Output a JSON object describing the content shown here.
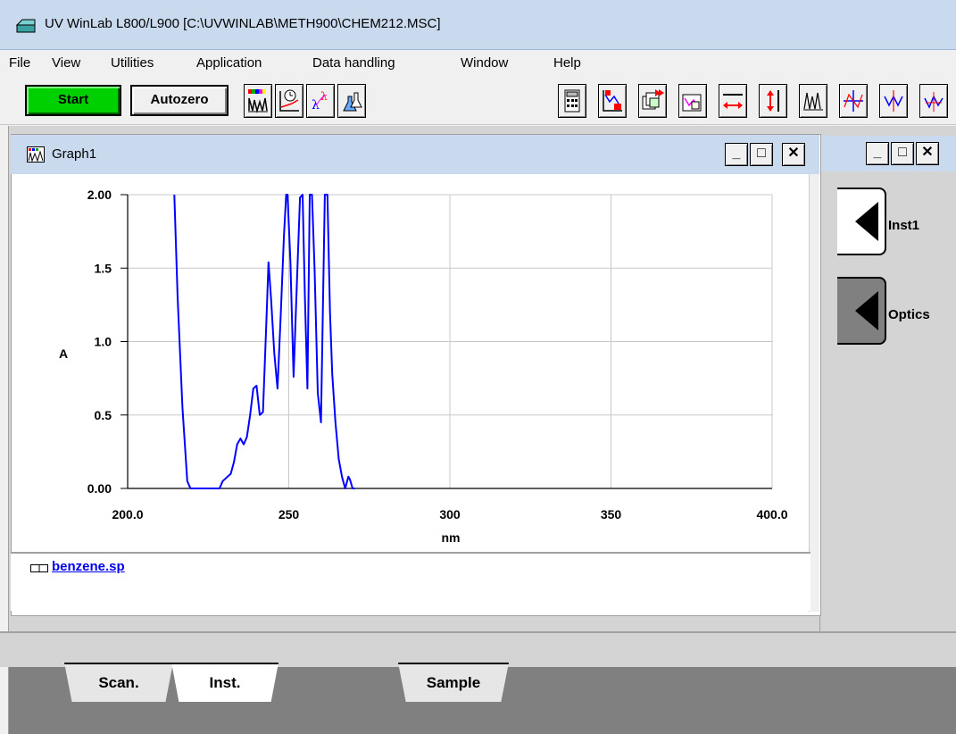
{
  "window": {
    "title": "UV WinLab L800/L900 [C:\\UVWINLAB\\METH900\\CHEM212.MSC]"
  },
  "menu": [
    "File",
    "View",
    "Utilities",
    "Application",
    "Data handling",
    "Window",
    "Help"
  ],
  "toolbar": {
    "start_label": "Start",
    "autozero_label": "Autozero",
    "start_color": "#00d000"
  },
  "graph_window": {
    "title": "Graph1",
    "legend_file": "benzene.sp",
    "controls": {
      "minimize": "_",
      "maximize": "□",
      "close": "✕"
    }
  },
  "inst_panel": {
    "buttons": [
      "Inst1",
      "Optics"
    ],
    "controls": {
      "minimize": "_",
      "maximize": "□",
      "close": "✕"
    }
  },
  "tabs": [
    "Scan.",
    "Inst.",
    "Sample"
  ],
  "chart_data": {
    "type": "line",
    "xlabel": "nm",
    "ylabel": "A",
    "xlim": [
      200,
      400
    ],
    "ylim": [
      0,
      2
    ],
    "x_ticks": [
      "200.0",
      "250",
      "300",
      "350",
      "400.0"
    ],
    "y_ticks": [
      "0.00",
      "0.5",
      "1.0",
      "1.5",
      "2.00"
    ],
    "grid": true,
    "line_color": "#0000ff",
    "series": [
      {
        "name": "benzene.sp",
        "x": [
          214.5,
          215.5,
          217,
          218.5,
          219.5,
          220.5,
          228.5,
          229.5,
          231,
          232,
          233,
          234,
          235,
          236,
          237,
          238,
          239,
          240,
          241,
          242,
          243,
          243.7,
          244.5,
          245.5,
          246.5,
          247.5,
          248.5,
          249.2,
          249.6,
          250.5,
          251.5,
          252.5,
          253.5,
          254.3,
          255,
          255.8,
          256.5,
          257.2,
          258,
          259,
          260,
          261.2,
          262,
          262.8,
          263.5,
          264.5,
          265.5,
          266.5,
          267.5,
          268.5,
          269,
          269.8,
          270.5
        ],
        "y": [
          2.0,
          1.3,
          0.55,
          0.05,
          0.0,
          0.0,
          0.0,
          0.05,
          0.08,
          0.1,
          0.18,
          0.3,
          0.34,
          0.3,
          0.35,
          0.5,
          0.68,
          0.7,
          0.5,
          0.52,
          1.1,
          1.54,
          1.3,
          0.92,
          0.68,
          1.18,
          1.72,
          2.0,
          2.0,
          1.55,
          0.76,
          1.38,
          1.98,
          2.0,
          1.3,
          0.68,
          2.0,
          2.0,
          1.5,
          0.65,
          0.45,
          2.0,
          2.0,
          1.2,
          0.78,
          0.45,
          0.2,
          0.08,
          0.0,
          0.08,
          0.06,
          0.0,
          0.0
        ]
      }
    ]
  }
}
